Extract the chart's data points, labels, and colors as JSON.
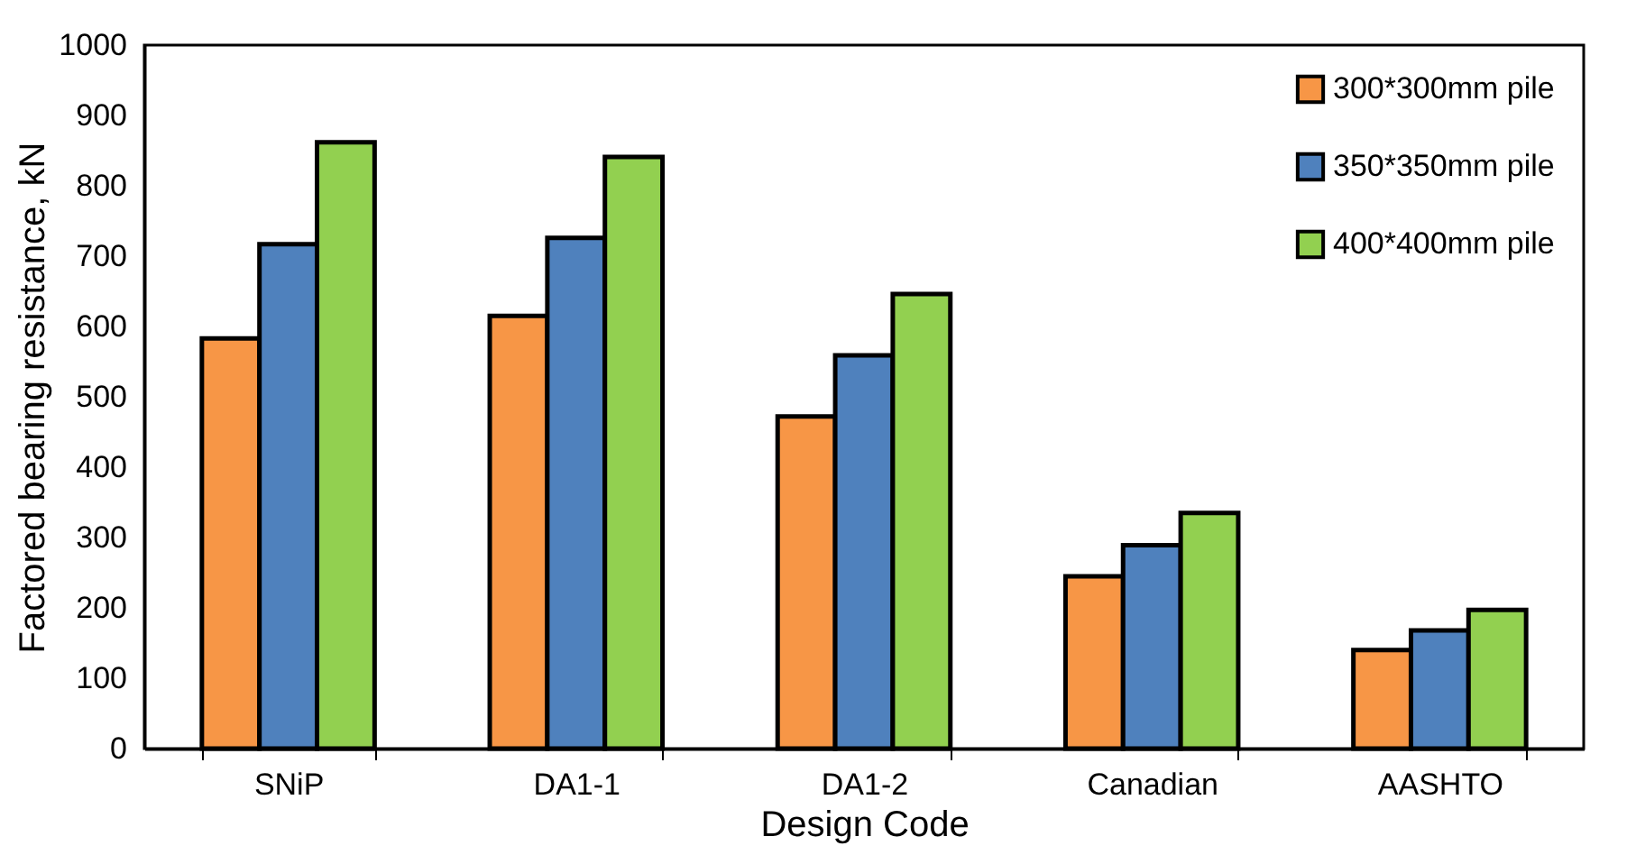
{
  "chart_data": {
    "type": "bar",
    "xlabel": "Design Code",
    "ylabel": "Factored bearing resistance, kN",
    "categories": [
      "SNiP",
      "DA1-1",
      "DA1-2",
      "Canadian",
      "AASHTO"
    ],
    "series": [
      {
        "name": "300*300mm pile",
        "color": "#f79646",
        "values": [
          583,
          615,
          472,
          245,
          140
        ]
      },
      {
        "name": "350*350mm pile",
        "color": "#4f81bd",
        "values": [
          717,
          726,
          559,
          289,
          168
        ]
      },
      {
        "name": "400*400mm pile",
        "color": "#92d050",
        "values": [
          862,
          841,
          646,
          335,
          197
        ]
      }
    ],
    "ylim": [
      0,
      1000
    ],
    "yticks": [
      0,
      100,
      200,
      300,
      400,
      500,
      600,
      700,
      800,
      900,
      1000
    ],
    "grid": false,
    "legend": "top right"
  }
}
